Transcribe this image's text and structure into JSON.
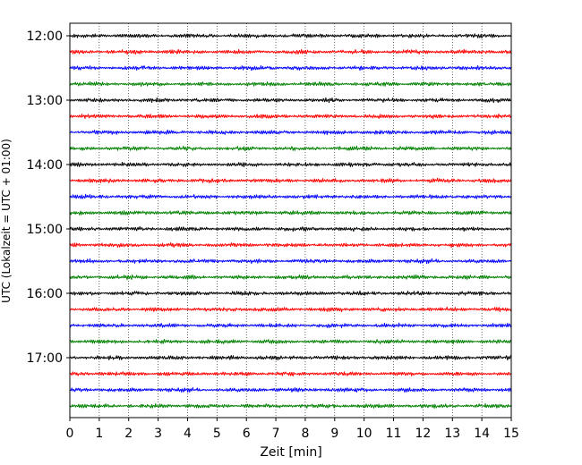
{
  "chart_data": {
    "type": "line",
    "subtype": "helicorder-seismogram",
    "title": "",
    "xlabel": "Zeit  [min]",
    "ylabel": "UTC (Lokalzeit = UTC + 01:00)",
    "xlim": [
      0,
      15
    ],
    "x_ticks": [
      "0",
      "1",
      "2",
      "3",
      "4",
      "5",
      "6",
      "7",
      "8",
      "9",
      "10",
      "11",
      "12",
      "13",
      "14",
      "15"
    ],
    "y_ticks": [
      "12:00",
      "13:00",
      "14:00",
      "15:00",
      "16:00",
      "17:00"
    ],
    "grid": "vertical-dotted",
    "trace_colors": [
      "#000000",
      "#ff0000",
      "#0000ff",
      "#008000"
    ],
    "traces": [
      {
        "start": "12:00",
        "color_index": 0
      },
      {
        "start": "12:15",
        "color_index": 1
      },
      {
        "start": "12:30",
        "color_index": 2
      },
      {
        "start": "12:45",
        "color_index": 3
      },
      {
        "start": "13:00",
        "color_index": 0
      },
      {
        "start": "13:15",
        "color_index": 1
      },
      {
        "start": "13:30",
        "color_index": 2
      },
      {
        "start": "13:45",
        "color_index": 3
      },
      {
        "start": "14:00",
        "color_index": 0
      },
      {
        "start": "14:15",
        "color_index": 1
      },
      {
        "start": "14:30",
        "color_index": 2
      },
      {
        "start": "14:45",
        "color_index": 3
      },
      {
        "start": "15:00",
        "color_index": 0
      },
      {
        "start": "15:15",
        "color_index": 1
      },
      {
        "start": "15:30",
        "color_index": 2
      },
      {
        "start": "15:45",
        "color_index": 3
      },
      {
        "start": "16:00",
        "color_index": 0
      },
      {
        "start": "16:15",
        "color_index": 1
      },
      {
        "start": "16:30",
        "color_index": 2
      },
      {
        "start": "16:45",
        "color_index": 3
      },
      {
        "start": "17:00",
        "color_index": 0
      },
      {
        "start": "17:15",
        "color_index": 1
      },
      {
        "start": "17:30",
        "color_index": 2
      },
      {
        "start": "17:45",
        "color_index": 3
      }
    ]
  }
}
